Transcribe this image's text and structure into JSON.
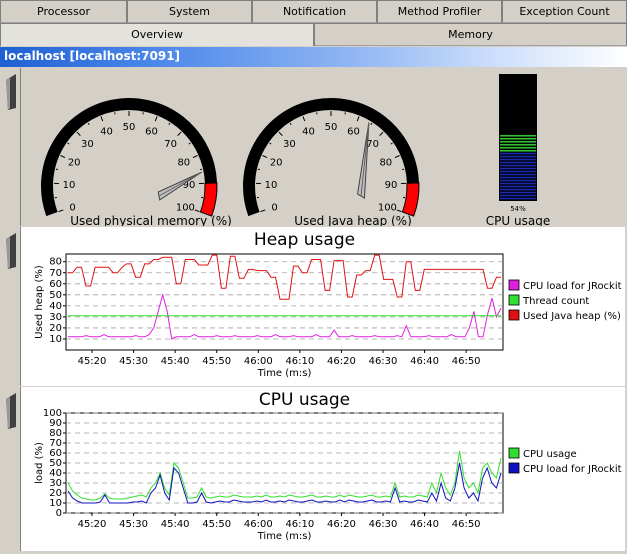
{
  "tabs_row1": [
    {
      "label": "Processor"
    },
    {
      "label": "System"
    },
    {
      "label": "Notification"
    },
    {
      "label": "Method Profiler"
    },
    {
      "label": "Exception Count"
    }
  ],
  "tabs_row2": [
    {
      "label": "Overview",
      "active": true
    },
    {
      "label": "Memory",
      "active": false
    }
  ],
  "host": {
    "label": "localhost [localhost:7091]"
  },
  "gauges": {
    "physical_memory": {
      "label": "Used physical memory (%)",
      "value": 86,
      "ticks": [
        "0",
        "10",
        "20",
        "30",
        "40",
        "50",
        "60",
        "70",
        "80",
        "90",
        "100"
      ]
    },
    "java_heap": {
      "label": "Used Java heap (%)",
      "value": 64,
      "ticks": [
        "0",
        "10",
        "20",
        "30",
        "40",
        "50",
        "60",
        "70",
        "80",
        "90",
        "100"
      ]
    },
    "cpu_bar": {
      "label": "CPU usage",
      "value": 54,
      "value_text": "54%"
    }
  },
  "chart_data": [
    {
      "type": "line",
      "title": "Heap usage",
      "xlabel": "Time (m:s)",
      "ylabel": "Used heap (%)",
      "ylim": [
        0,
        87
      ],
      "yticks": [
        10,
        20,
        30,
        40,
        50,
        60,
        70,
        80
      ],
      "grid": true,
      "legend_position": "right",
      "x_ticks": [
        "45:20",
        "45:30",
        "45:40",
        "45:50",
        "46:00",
        "46:10",
        "46:20",
        "46:30",
        "46:40",
        "46:50"
      ],
      "series": [
        {
          "name": "CPU load for JRockit",
          "color": "#e020e0",
          "values": [
            12,
            12,
            12,
            12,
            13,
            12,
            12,
            12,
            14,
            12,
            12,
            12,
            12,
            12,
            12,
            13,
            12,
            12,
            14,
            20,
            35,
            50,
            35,
            10,
            12,
            12,
            12,
            12,
            14,
            12,
            12,
            12,
            12,
            13,
            12,
            12,
            12,
            13,
            12,
            12,
            12,
            12,
            13,
            12,
            12,
            12,
            14,
            12,
            12,
            12,
            13,
            12,
            12,
            12,
            12,
            14,
            12,
            12,
            12,
            18,
            12,
            12,
            12,
            13,
            12,
            12,
            12,
            12,
            13,
            12,
            12,
            12,
            12,
            13,
            12,
            22,
            12,
            12,
            12,
            12,
            13,
            12,
            12,
            12,
            12,
            14,
            12,
            12,
            12,
            20,
            35,
            12,
            12,
            32,
            47,
            30,
            38
          ]
        },
        {
          "name": "Thread count",
          "color": "#30e030",
          "values": [
            31,
            31,
            31,
            31,
            31,
            31,
            31,
            31,
            31,
            31,
            31,
            31,
            31,
            31,
            31,
            31,
            31,
            31,
            31,
            31,
            31,
            31,
            31,
            31,
            31,
            31,
            31,
            31,
            31,
            31,
            31,
            31,
            31,
            31,
            31,
            31,
            31,
            31,
            31,
            31,
            31,
            31,
            31,
            31,
            31,
            31,
            31,
            31,
            31,
            31,
            31,
            31,
            31,
            31,
            31,
            31,
            31,
            31,
            31,
            31,
            31,
            31,
            31,
            31,
            31,
            31,
            31,
            31,
            31,
            31,
            31,
            31,
            31,
            31,
            31,
            31,
            31,
            31,
            31,
            31,
            31,
            31,
            31,
            31,
            31,
            31,
            31,
            31,
            31,
            31,
            31,
            31,
            31,
            31,
            31,
            31,
            31
          ]
        },
        {
          "name": "Used Java heap (%)",
          "color": "#e01010",
          "values": [
            70,
            70,
            75,
            75,
            58,
            58,
            75,
            75,
            75,
            75,
            70,
            70,
            75,
            78,
            78,
            66,
            66,
            78,
            78,
            82,
            82,
            84,
            84,
            84,
            60,
            60,
            82,
            82,
            82,
            77,
            77,
            77,
            86,
            86,
            56,
            56,
            85,
            85,
            65,
            65,
            73,
            73,
            72,
            72,
            72,
            66,
            66,
            46,
            46,
            46,
            76,
            76,
            70,
            70,
            82,
            82,
            82,
            54,
            54,
            81,
            81,
            81,
            48,
            48,
            68,
            68,
            72,
            72,
            86,
            86,
            64,
            64,
            64,
            48,
            48,
            80,
            80,
            54,
            54,
            73,
            73,
            73,
            73,
            73,
            73,
            73,
            73,
            73,
            73,
            73,
            73,
            73,
            73,
            56,
            56,
            66,
            66
          ]
        }
      ]
    },
    {
      "type": "line",
      "title": "CPU usage",
      "xlabel": "Time (m:s)",
      "ylabel": "load (%)",
      "ylim": [
        0,
        100
      ],
      "yticks": [
        0,
        10,
        20,
        30,
        40,
        50,
        60,
        70,
        80,
        90,
        100
      ],
      "grid": true,
      "legend_position": "right",
      "x_ticks": [
        "45:20",
        "45:30",
        "45:40",
        "45:50",
        "46:00",
        "46:10",
        "46:20",
        "46:30",
        "46:40",
        "46:50"
      ],
      "series": [
        {
          "name": "CPU usage",
          "color": "#30e030",
          "values": [
            30,
            22,
            18,
            15,
            14,
            13,
            13,
            15,
            19,
            15,
            14,
            14,
            14,
            15,
            16,
            17,
            18,
            16,
            25,
            30,
            40,
            25,
            18,
            50,
            45,
            30,
            15,
            15,
            16,
            25,
            16,
            15,
            16,
            17,
            16,
            16,
            18,
            17,
            16,
            16,
            16,
            17,
            16,
            18,
            16,
            16,
            17,
            16,
            18,
            17,
            16,
            16,
            17,
            18,
            16,
            16,
            17,
            16,
            16,
            18,
            16,
            18,
            17,
            16,
            16,
            17,
            18,
            16,
            16,
            17,
            16,
            30,
            16,
            17,
            16,
            16,
            18,
            17,
            16,
            30,
            20,
            40,
            25,
            18,
            30,
            62,
            35,
            25,
            30,
            20,
            45,
            50,
            40,
            35,
            55
          ]
        },
        {
          "name": "CPU load for JRockit",
          "color": "#1010c0",
          "values": [
            22,
            15,
            12,
            10,
            10,
            10,
            10,
            11,
            18,
            10,
            10,
            10,
            10,
            10,
            11,
            11,
            12,
            10,
            20,
            25,
            38,
            20,
            13,
            45,
            40,
            25,
            10,
            10,
            11,
            20,
            11,
            10,
            11,
            12,
            11,
            11,
            13,
            12,
            11,
            11,
            11,
            12,
            11,
            13,
            11,
            11,
            12,
            11,
            13,
            12,
            11,
            11,
            12,
            13,
            11,
            11,
            12,
            11,
            11,
            13,
            11,
            13,
            12,
            11,
            11,
            12,
            13,
            11,
            11,
            12,
            11,
            25,
            11,
            12,
            11,
            11,
            13,
            12,
            11,
            20,
            12,
            30,
            15,
            12,
            25,
            50,
            25,
            15,
            20,
            12,
            35,
            45,
            30,
            25,
            40
          ]
        }
      ]
    }
  ]
}
